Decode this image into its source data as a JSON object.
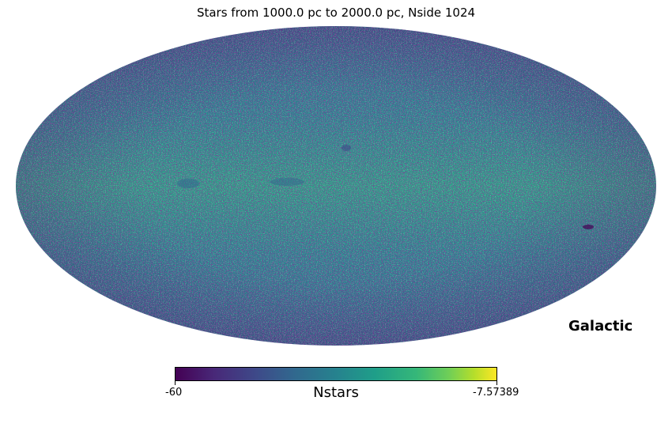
{
  "map": {
    "title": "Stars from 1000.0 pc to 2000.0 pc, Nside 1024",
    "projection": "Mollweide",
    "coordinate_system": "Galactic",
    "colormap": "viridis",
    "colorbar": {
      "label": "Nstars",
      "min_label": "-60",
      "max_label": "-7.57389",
      "min": -60,
      "max": -7.57389
    },
    "colors": {
      "low": "#440154",
      "mid": "#26828e",
      "band": "#35b779",
      "high": "#fde725"
    }
  }
}
